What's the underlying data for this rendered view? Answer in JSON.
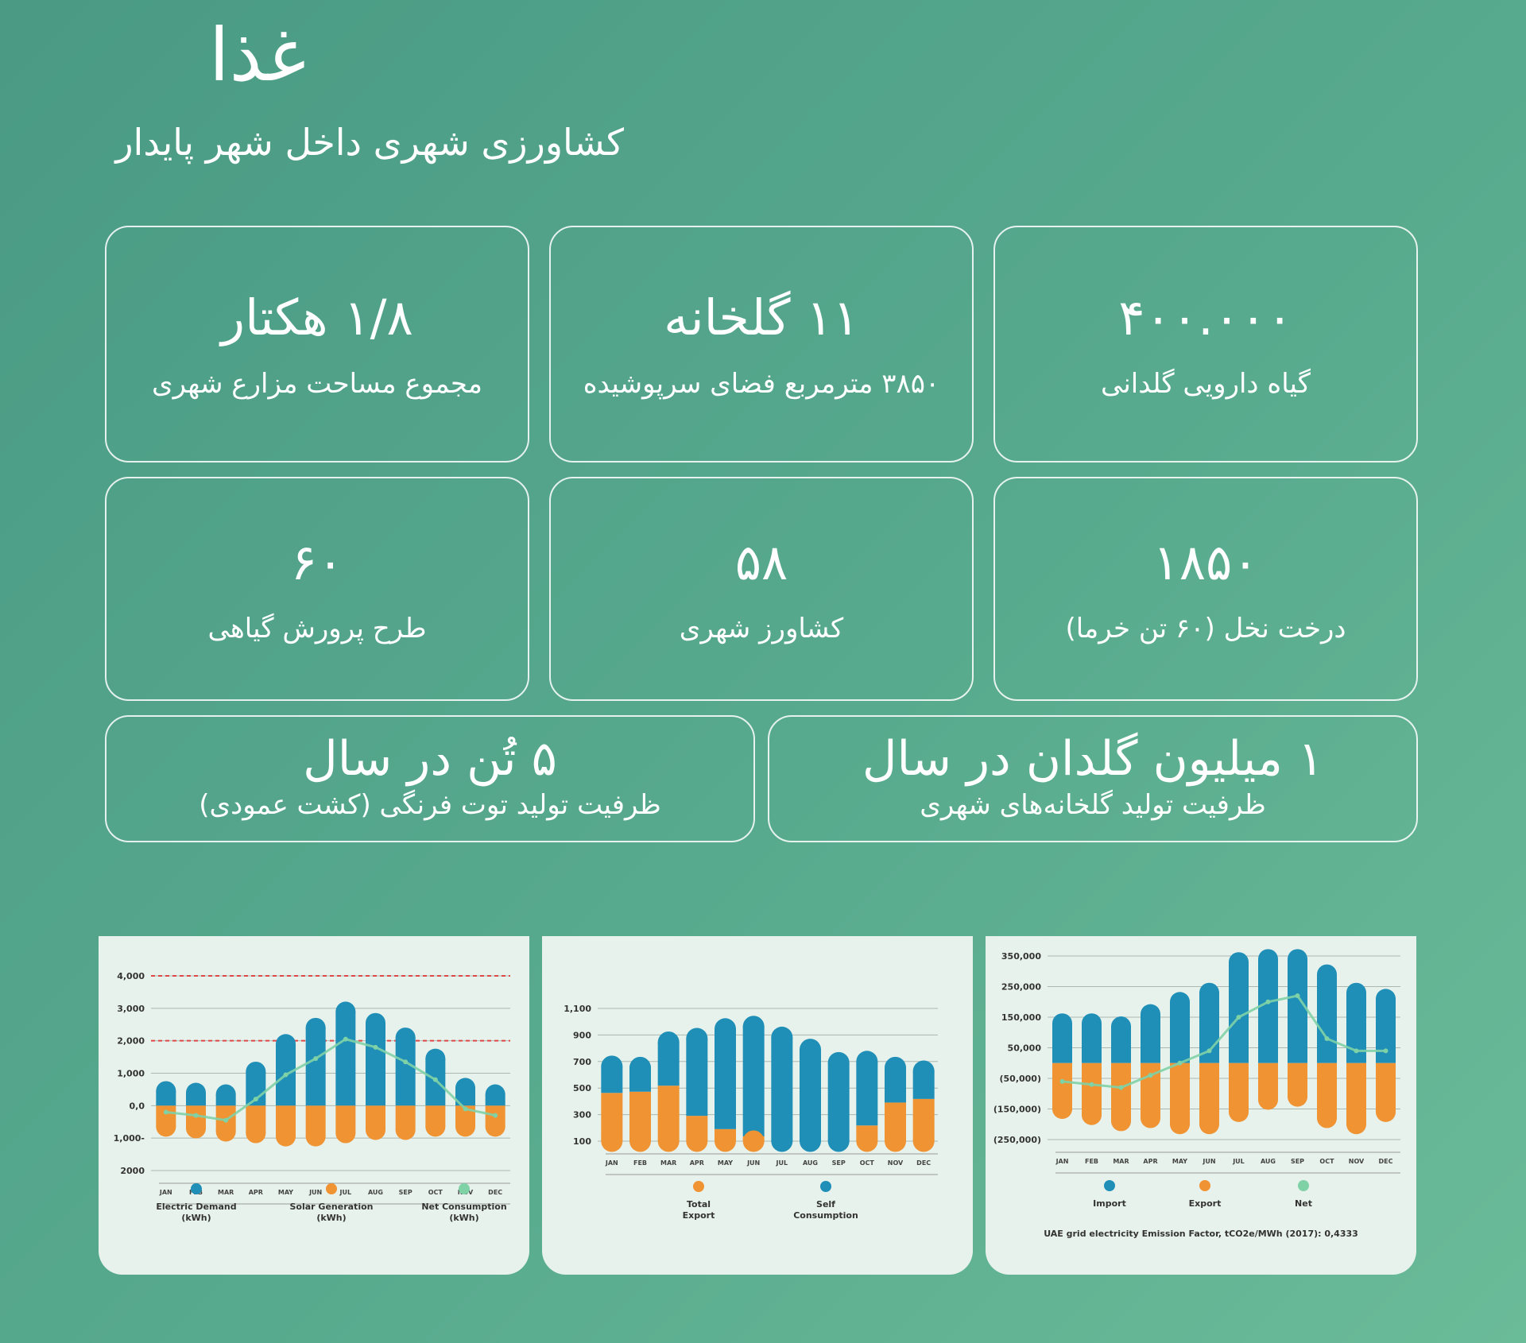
{
  "header": {
    "title": "غذا",
    "subtitle": "کشاورزی شهری داخل شهر پایدار"
  },
  "stats": [
    {
      "value": "۴۰۰.۰۰۰",
      "label": "گیاه دارویی گلدانی"
    },
    {
      "value": "۱۱ گلخانه",
      "label": "۳۸۵۰ مترمربع فضای سرپوشیده"
    },
    {
      "value": "۱/۸ هکتار",
      "label": "مجموع مساحت مزارع شهری"
    },
    {
      "value": "۱۸۵۰",
      "label": "درخت نخل (۶۰ تن خرما)"
    },
    {
      "value": "۵۸",
      "label": "کشاورز شهری"
    },
    {
      "value": "۶۰",
      "label": "طرح پرورش گیاهی"
    },
    {
      "value": "۱ میلیون گلدان در سال",
      "label": "ظرفیت تولید گلخانه‌های شهری"
    },
    {
      "value": "۵ تُن در سال",
      "label": "ظرفیت تولید توت فرنگی (کشت عمودی)"
    }
  ],
  "colors": {
    "blue": "#1f8fb8",
    "orange": "#ef9333",
    "green_line": "#7fd1a6",
    "red_dash": "#e04848",
    "panel_bg": "#e8f2ec"
  },
  "chart_data": [
    {
      "type": "bar",
      "subtype": "stacked-diverging",
      "y_ticks": [
        "4,000",
        "3,000",
        "2,000",
        "1,000",
        "0,0",
        "1,000-",
        "2000"
      ],
      "ylim": [
        -2000,
        4000
      ],
      "reference_lines": [
        4000,
        2000
      ],
      "categories": [
        "JAN",
        "FEB",
        "MAR",
        "APR",
        "MAY",
        "JUN",
        "JUL",
        "AUG",
        "SEP",
        "OCT",
        "NOV",
        "DEC"
      ],
      "series": [
        {
          "name": "Electric Demand\n(kWh)",
          "color": "#1f8fb8",
          "values": [
            450,
            400,
            350,
            1050,
            1900,
            2400,
            2900,
            2550,
            2100,
            1450,
            550,
            350
          ]
        },
        {
          "name": "Solar Generation\n(kWh)",
          "color": "#ef9333",
          "values": [
            -650,
            -700,
            -800,
            -850,
            -950,
            -950,
            -850,
            -750,
            -750,
            -650,
            -650,
            -650
          ]
        },
        {
          "name": "Net Consumption\n(kWh)",
          "color": "#7fd1a6",
          "line": true,
          "values": [
            -200,
            -300,
            -450,
            200,
            950,
            1450,
            2050,
            1800,
            1350,
            800,
            -100,
            -300
          ]
        }
      ]
    },
    {
      "type": "bar",
      "subtype": "stacked",
      "y_ticks": [
        "1,100",
        "900",
        "700",
        "500",
        "300",
        "100"
      ],
      "ylim": [
        0,
        1100
      ],
      "categories": [
        "JAN",
        "FEB",
        "MAR",
        "APR",
        "MAY",
        "JUN",
        "JUL",
        "AUG",
        "SEP",
        "OCT",
        "NOV",
        "DEC"
      ],
      "series": [
        {
          "name": "Total\nExport",
          "color": "#ef9333",
          "values": [
            400,
            410,
            460,
            210,
            100,
            40,
            0,
            0,
            0,
            130,
            320,
            350
          ]
        },
        {
          "name": "Self\nConsumption",
          "color": "#1f8fb8",
          "values": [
            220,
            200,
            360,
            640,
            830,
            910,
            860,
            760,
            650,
            530,
            290,
            230
          ]
        }
      ]
    },
    {
      "type": "bar",
      "subtype": "stacked-diverging",
      "y_ticks": [
        "350,000",
        "250,000",
        "150,000",
        "50,000",
        "(50,000)",
        "(150,000)",
        "(250,000)"
      ],
      "ylim": [
        -250000,
        350000
      ],
      "categories": [
        "JAN",
        "FEB",
        "MAR",
        "APR",
        "MAY",
        "JUN",
        "JUL",
        "AUG",
        "SEP",
        "OCT",
        "NOV",
        "DEC"
      ],
      "series": [
        {
          "name": "Import",
          "color": "#1f8fb8",
          "values": [
            130000,
            130000,
            120000,
            160000,
            200000,
            230000,
            330000,
            340000,
            340000,
            290000,
            230000,
            210000
          ]
        },
        {
          "name": "Export",
          "color": "#ef9333",
          "values": [
            -150000,
            -170000,
            -190000,
            -180000,
            -200000,
            -200000,
            -160000,
            -120000,
            -110000,
            -180000,
            -200000,
            -160000
          ]
        },
        {
          "name": "Net",
          "color": "#7fd1a6",
          "line": true,
          "values": [
            -60000,
            -70000,
            -80000,
            -40000,
            0,
            40000,
            150000,
            200000,
            220000,
            80000,
            40000,
            40000
          ]
        }
      ],
      "footnote": "UAE grid electricity Emission Factor, tCO2e/MWh (2017): 0,4333"
    }
  ]
}
